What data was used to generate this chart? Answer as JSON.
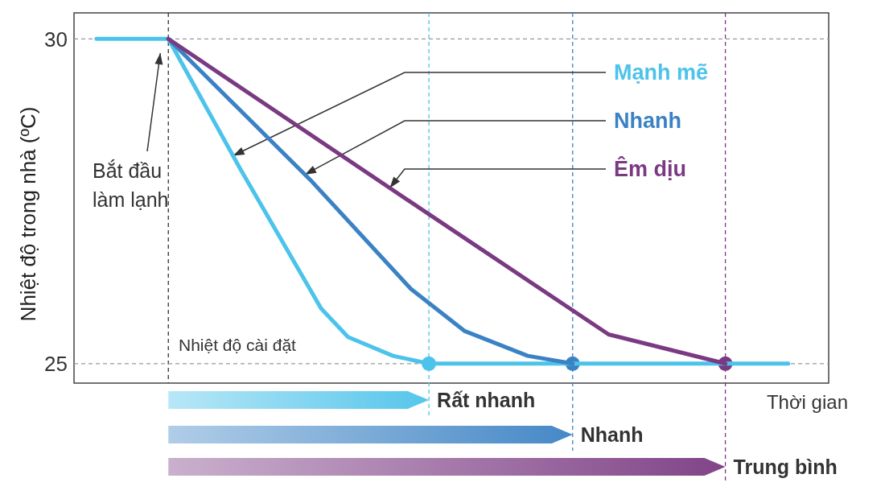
{
  "chart_data": {
    "type": "line",
    "ylabel": "Nhiệt độ trong nhà (ºC)",
    "xlabel": "Thời gian",
    "categories": [
      null,
      null,
      null,
      null,
      null,
      null,
      null,
      null,
      null,
      null,
      null,
      null,
      null,
      null,
      null,
      null,
      null,
      null,
      null,
      null,
      null,
      null,
      null,
      null,
      null,
      null,
      null,
      null,
      null,
      null,
      null,
      null,
      null,
      null,
      null,
      null,
      null,
      null,
      null,
      null,
      null,
      null,
      null,
      null,
      null,
      null,
      null,
      null,
      null,
      null,
      null,
      null,
      null,
      null,
      null,
      null,
      null,
      null,
      null,
      null,
      null,
      null,
      null,
      null,
      null,
      null,
      null,
      null,
      null,
      null,
      null,
      null,
      null,
      null,
      null,
      null,
      null,
      null,
      null,
      null,
      null,
      null,
      null,
      null
    ],
    "series": [
      {
        "name": "Mạnh mẽ",
        "color": "#4cc3ea",
        "values": [
          null,
          null,
          30,
          null,
          null,
          null,
          null,
          null,
          null,
          null,
          30,
          null,
          null,
          null,
          null,
          null,
          null,
          null,
          28.0,
          null,
          null,
          null,
          null,
          null,
          null,
          null,
          null,
          25.85,
          null,
          null,
          25.41,
          null,
          null,
          null,
          null,
          25.12,
          null,
          null,
          null,
          25,
          null,
          null,
          null,
          null,
          null,
          null,
          null,
          null,
          null,
          null,
          null,
          null,
          null,
          null,
          null,
          null,
          null,
          null,
          null,
          null,
          null,
          null,
          null,
          null,
          null,
          null,
          null,
          null,
          null,
          null,
          null,
          null,
          null,
          null,
          null,
          null,
          null,
          null,
          null,
          25,
          null,
          null,
          null,
          null
        ]
      },
      {
        "name": "Nhanh",
        "color": "#3b82c4",
        "values": [
          null,
          null,
          null,
          null,
          null,
          null,
          null,
          null,
          null,
          null,
          30,
          null,
          null,
          null,
          null,
          null,
          null,
          null,
          null,
          null,
          null,
          null,
          null,
          null,
          null,
          null,
          27.8,
          null,
          null,
          null,
          null,
          null,
          null,
          null,
          null,
          null,
          null,
          26.15,
          null,
          null,
          null,
          null,
          null,
          25.5,
          null,
          null,
          null,
          null,
          null,
          null,
          25.12,
          null,
          null,
          null,
          null,
          25,
          null,
          null,
          null,
          null,
          null,
          null,
          null,
          null,
          null,
          null,
          null,
          null,
          null,
          null,
          null,
          null,
          null,
          null,
          null,
          null,
          null,
          null,
          null,
          null,
          null,
          null,
          null,
          null
        ]
      },
      {
        "name": "Êm dịu",
        "color": "#7a3a82",
        "values": [
          null,
          null,
          null,
          null,
          null,
          null,
          null,
          null,
          null,
          null,
          30,
          null,
          null,
          null,
          null,
          null,
          null,
          null,
          null,
          null,
          null,
          null,
          null,
          null,
          null,
          null,
          null,
          null,
          null,
          null,
          null,
          null,
          null,
          null,
          null,
          null,
          null,
          null,
          null,
          27.3,
          null,
          null,
          null,
          null,
          null,
          null,
          null,
          null,
          null,
          null,
          null,
          null,
          null,
          null,
          null,
          null,
          null,
          null,
          null,
          25.45,
          null,
          null,
          null,
          null,
          null,
          null,
          null,
          null,
          null,
          null,
          null,
          null,
          25,
          null,
          null,
          null,
          null,
          null,
          null,
          null,
          null,
          null,
          null,
          null
        ]
      }
    ],
    "ylim": [
      24.7,
      30.4
    ],
    "yticks": [
      25,
      30
    ],
    "tick_labels": "y",
    "ref_lines": [
      {
        "axis": "y",
        "value": 30,
        "color": "#999999",
        "line_style": "dashed"
      },
      {
        "axis": "y",
        "value": 25,
        "label": "Nhiệt độ cài đặt",
        "color": "#999999",
        "line_style": "dashed"
      }
    ],
    "annotations": [
      "Bắt đầu làm lạnh",
      "Rất nhanh",
      "Nhanh",
      "Trung bình"
    ]
  }
}
